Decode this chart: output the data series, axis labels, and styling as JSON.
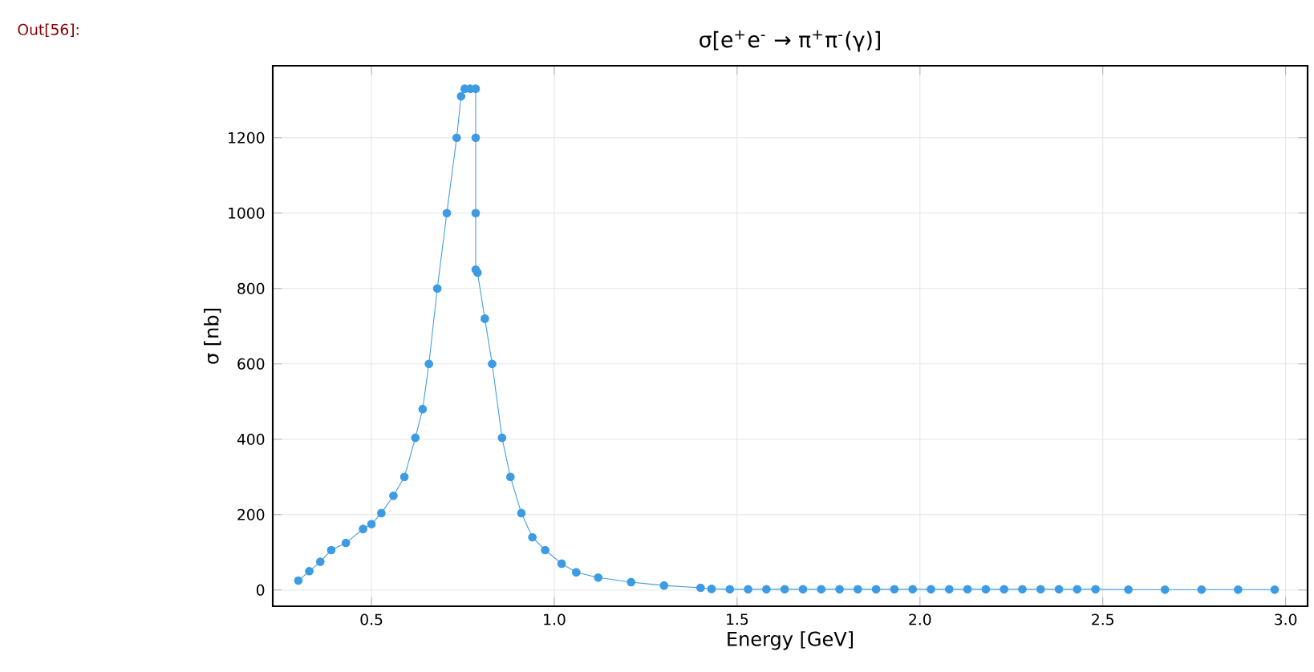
{
  "chart_data": {
    "type": "line",
    "title": "σ[e$^{+}$e$^{-}$ → π$^{+}$π$^{-}$(γ)]",
    "xlabel": "Energy [GeV]",
    "ylabel": "σ [nb]",
    "annotations": [
      "Out[56]:"
    ],
    "color": "#3d9be3",
    "marker": "circle",
    "line_style": "solid",
    "grid": true,
    "xlim": [
      0.23,
      3.06
    ],
    "ylim": [
      -43,
      1391
    ],
    "xticks": [
      {
        "value": 0.5,
        "label": "0.5"
      },
      {
        "value": 1.0,
        "label": "1.0"
      },
      {
        "value": 1.5,
        "label": "1.5"
      },
      {
        "value": 2.0,
        "label": "2.0"
      },
      {
        "value": 2.5,
        "label": "2.5"
      },
      {
        "value": 3.0,
        "label": "3.0"
      }
    ],
    "yticks": [
      0,
      200,
      400,
      600,
      800,
      1000,
      1200
    ],
    "x": [
      0.3,
      0.33,
      0.36,
      0.39,
      0.43,
      0.477,
      0.5,
      0.527,
      0.56,
      0.59,
      0.62,
      0.64,
      0.657,
      0.68,
      0.706,
      0.733,
      0.745,
      0.755,
      0.77,
      0.785,
      0.785,
      0.785,
      0.785,
      0.79,
      0.81,
      0.83,
      0.857,
      0.88,
      0.91,
      0.94,
      0.975,
      1.02,
      1.06,
      1.12,
      1.21,
      1.3,
      1.4,
      1.43,
      1.48,
      1.53,
      1.58,
      1.63,
      1.68,
      1.73,
      1.78,
      1.83,
      1.88,
      1.93,
      1.98,
      2.03,
      2.08,
      2.13,
      2.18,
      2.23,
      2.28,
      2.33,
      2.38,
      2.43,
      2.48,
      2.57,
      2.67,
      2.77,
      2.87,
      2.97
    ],
    "values": [
      25,
      50,
      75,
      106,
      125,
      162,
      175,
      204,
      250,
      300,
      404,
      480,
      600,
      800,
      1000,
      1200,
      1310,
      1330,
      1330,
      1330,
      1200,
      1000,
      850,
      842,
      720,
      600,
      404,
      300,
      204,
      140,
      106,
      70,
      47,
      33,
      21,
      12,
      6,
      3,
      2,
      2,
      2,
      2,
      2,
      2,
      2,
      2,
      2,
      2,
      2,
      2,
      2,
      2,
      2,
      2,
      2,
      2,
      2,
      2,
      2,
      1,
      1,
      1,
      1,
      1
    ]
  }
}
